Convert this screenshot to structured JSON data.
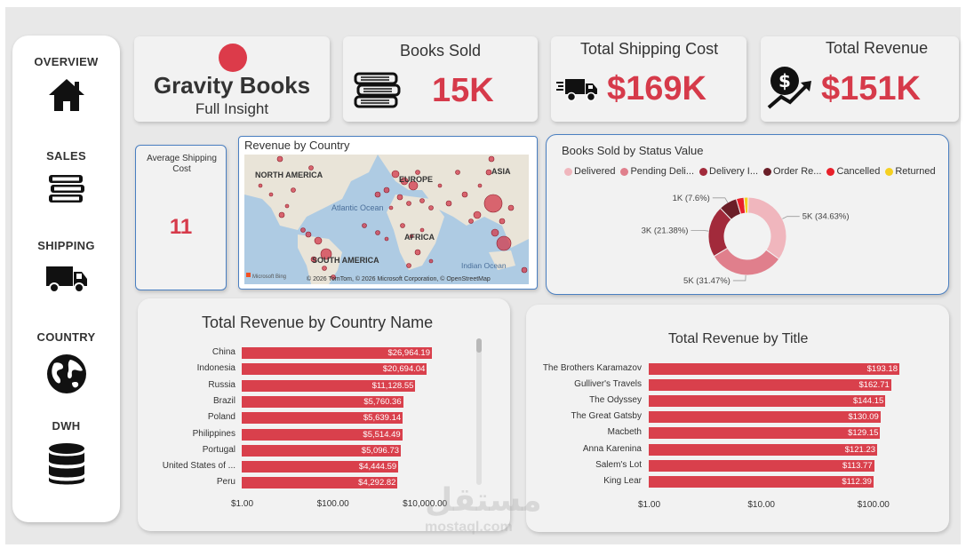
{
  "nav": {
    "items": [
      {
        "label": "OVERVIEW",
        "icon": "home-icon"
      },
      {
        "label": "SALES",
        "icon": "books-icon"
      },
      {
        "label": "SHIPPING",
        "icon": "truck-icon"
      },
      {
        "label": "COUNTRY",
        "icon": "globe-icon"
      },
      {
        "label": "DWH",
        "icon": "database-icon"
      }
    ]
  },
  "brand": {
    "title": "Gravity Books",
    "subtitle": "Full Insight",
    "logo_color": "#dc3b4a"
  },
  "kpis": {
    "books_sold": {
      "title": "Books Sold",
      "value": "15K"
    },
    "shipping_cost": {
      "title": "Total Shipping Cost",
      "value": "$169K"
    },
    "revenue": {
      "title": "Total Revenue",
      "value": "$151K"
    }
  },
  "avg_shipping": {
    "title": "Average Shipping Cost",
    "value": "11"
  },
  "map": {
    "title": "Revenue by Country",
    "labels": {
      "north_america": "NORTH AMERICA",
      "europe": "EUROPE",
      "asia": "ASIA",
      "atlantic": "Atlantic Ocean",
      "africa": "AFRICA",
      "south_america": "SOUTH AMERICA",
      "indian": "Indian Ocean"
    },
    "attribution": "© 2026 TomTom, © 2026 Microsoft Corporation, © OpenStreetMap",
    "bing": "Microsoft Bing"
  },
  "status": {
    "title": "Books Sold by Status Value",
    "legend": [
      {
        "label": "Delivered",
        "color": "#f0b6bd"
      },
      {
        "label": "Pending Deli...",
        "color": "#e07f8c"
      },
      {
        "label": "Delivery I...",
        "color": "#a22a3b"
      },
      {
        "label": "Order Re...",
        "color": "#6b1f28"
      },
      {
        "label": "Cancelled",
        "color": "#e8202a"
      },
      {
        "label": "Returned",
        "color": "#f5d021"
      }
    ],
    "data_labels": [
      "5K (34.63%)",
      "5K (31.47%)",
      "3K (21.38%)",
      "1K (7.6%)"
    ]
  },
  "chart_data": [
    {
      "type": "pie",
      "title": "Books Sold by Status Value",
      "categories": [
        "Delivered",
        "Pending Delivery",
        "Delivery In Progress",
        "Order Received",
        "Cancelled",
        "Returned"
      ],
      "values": [
        34.63,
        31.47,
        21.38,
        7.6,
        3.2,
        1.72
      ],
      "unit": "%"
    },
    {
      "type": "bar",
      "title": "Total Revenue by Country Name",
      "categories": [
        "China",
        "Indonesia",
        "Russia",
        "Brazil",
        "Poland",
        "Philippines",
        "Portugal",
        "United States of ...",
        "Peru"
      ],
      "values": [
        26964.19,
        20694.04,
        11128.55,
        5760.36,
        5639.14,
        5514.49,
        5096.73,
        4444.59,
        4292.82
      ],
      "value_labels": [
        "$26,964.19",
        "$20,694.04",
        "$11,128.55",
        "$5,760.36",
        "$5,639.14",
        "$5,514.49",
        "$5,096.73",
        "$4,444.59",
        "$4,292.82"
      ],
      "xscale": "log",
      "xticks": [
        "$1.00",
        "$100.00",
        "$10,000.00"
      ]
    },
    {
      "type": "bar",
      "title": "Total Revenue by Title",
      "categories": [
        "The Brothers Karamazov",
        "Gulliver's Travels",
        "The Odyssey",
        "The Great Gatsby",
        "Macbeth",
        "Anna Karenina",
        "Salem's Lot",
        "King Lear"
      ],
      "values": [
        193.18,
        162.71,
        144.15,
        130.09,
        129.15,
        121.23,
        113.77,
        112.39
      ],
      "value_labels": [
        "$193.18",
        "$162.71",
        "$144.15",
        "$130.09",
        "$129.15",
        "$121.23",
        "$113.77",
        "$112.39"
      ],
      "xscale": "log",
      "xticks": [
        "$1.00",
        "$10.00",
        "$100.00"
      ]
    }
  ],
  "watermark": {
    "arabic": "مستقل",
    "latin": "mostaql.com"
  }
}
